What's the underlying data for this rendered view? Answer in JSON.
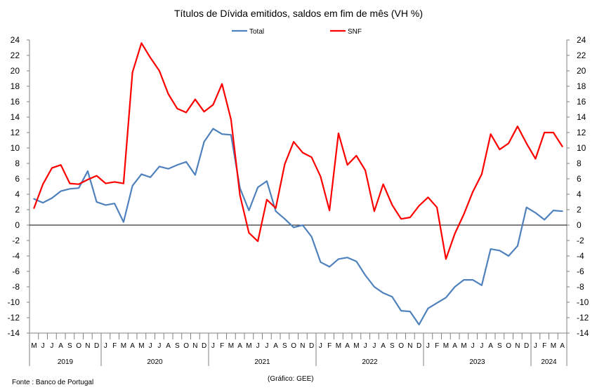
{
  "chart_data": {
    "type": "line",
    "title": "Títulos de Dívida emitidos, saldos em fim de mês  (VH %)",
    "ylim": [
      -14,
      24
    ],
    "yticks": [
      -14,
      -12,
      -10,
      -8,
      -6,
      -4,
      -2,
      0,
      2,
      4,
      6,
      8,
      10,
      12,
      14,
      16,
      18,
      20,
      22,
      24
    ],
    "month_labels": [
      "M",
      "J",
      "J",
      "A",
      "S",
      "O",
      "N",
      "D",
      "J",
      "F",
      "M",
      "A",
      "M",
      "J",
      "J",
      "A",
      "S",
      "O",
      "N",
      "D",
      "J",
      "F",
      "M",
      "A",
      "M",
      "J",
      "J",
      "A",
      "S",
      "O",
      "N",
      "D",
      "J",
      "F",
      "M",
      "A",
      "M",
      "J",
      "J",
      "A",
      "S",
      "O",
      "N",
      "D",
      "J",
      "F",
      "M",
      "A",
      "M",
      "J",
      "J",
      "A",
      "S",
      "O",
      "N",
      "D",
      "J",
      "F",
      "M",
      "A"
    ],
    "years": [
      {
        "label": "2019",
        "start": 0,
        "count": 8
      },
      {
        "label": "2020",
        "start": 8,
        "count": 12
      },
      {
        "label": "2021",
        "start": 20,
        "count": 12
      },
      {
        "label": "2022",
        "start": 32,
        "count": 12
      },
      {
        "label": "2023",
        "start": 44,
        "count": 12
      },
      {
        "label": "2024",
        "start": 56,
        "count": 4
      }
    ],
    "series": [
      {
        "name": "Total",
        "color": "#4f81bd",
        "values": [
          3.4,
          2.9,
          3.5,
          4.4,
          4.7,
          4.8,
          7.0,
          3.0,
          2.6,
          2.8,
          0.4,
          5.1,
          6.6,
          6.2,
          7.6,
          7.3,
          7.8,
          8.2,
          6.5,
          10.8,
          12.5,
          11.8,
          11.7,
          4.8,
          1.9,
          4.9,
          5.7,
          1.8,
          0.8,
          -0.3,
          0.0,
          -1.5,
          -4.8,
          -5.4,
          -4.4,
          -4.2,
          -4.7,
          -6.5,
          -8.0,
          -8.8,
          -9.3,
          -11.1,
          -11.2,
          -12.9,
          -10.8,
          -10.1,
          -9.4,
          -8.0,
          -7.1,
          -7.1,
          -7.8,
          -3.1,
          -3.3,
          -4.0,
          -2.7,
          2.3,
          1.6,
          0.7,
          1.9,
          1.8
        ]
      },
      {
        "name": "SNF",
        "color": "#ff0000",
        "values": [
          2.2,
          5.3,
          7.4,
          7.8,
          5.4,
          5.3,
          5.9,
          6.4,
          5.4,
          5.6,
          5.4,
          19.8,
          23.6,
          21.7,
          20.0,
          17.0,
          15.1,
          14.6,
          16.3,
          14.7,
          15.6,
          18.3,
          13.7,
          3.9,
          -1.0,
          -2.1,
          3.3,
          2.2,
          7.9,
          10.8,
          9.4,
          8.8,
          6.3,
          1.9,
          11.9,
          7.8,
          9.0,
          7.1,
          1.8,
          5.3,
          2.6,
          0.8,
          1.0,
          2.5,
          3.6,
          2.3,
          -4.4,
          -1.1,
          1.4,
          4.3,
          6.6,
          11.8,
          9.8,
          10.6,
          12.8,
          10.6,
          8.6,
          12.0,
          12.0,
          10.2
        ]
      }
    ],
    "legend_position": "top-center",
    "grid": false
  },
  "texts": {
    "source": "Fonte : Banco de Portugal",
    "credit": "(Gráfico: GEE)"
  }
}
